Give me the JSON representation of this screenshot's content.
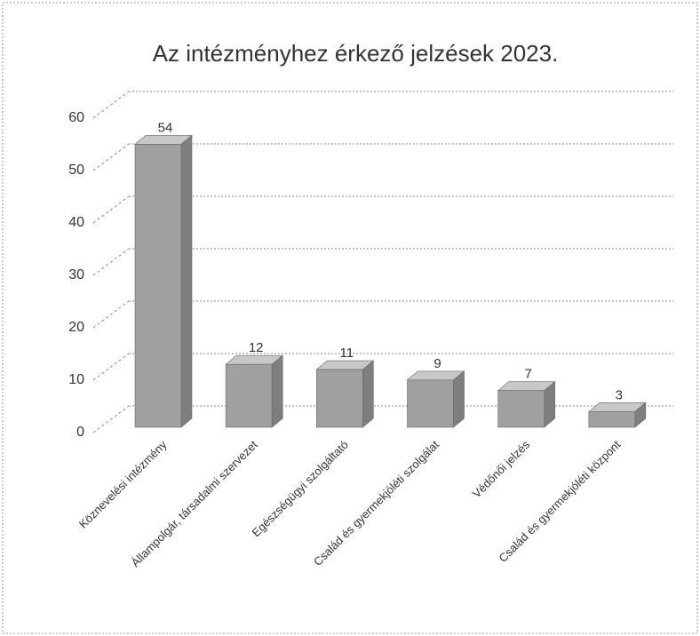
{
  "chart_data": {
    "type": "bar",
    "title": "Az intézményhez érkező jelzések 2023.",
    "categories": [
      "Köznevelési intézmény",
      "Állampolgár, társadalmi szervezet",
      "Egészségügyi szolgáltató",
      "Család és gyermekjóléti szolgálat",
      "Védőnői jelzés",
      "Család és gyermekjóléti központ"
    ],
    "values": [
      54,
      12,
      11,
      9,
      7,
      3
    ],
    "color": "#a0a0a0",
    "ylim": [
      0,
      60
    ],
    "yticks": [
      0,
      10,
      20,
      30,
      40,
      50,
      60
    ],
    "grid": true
  }
}
